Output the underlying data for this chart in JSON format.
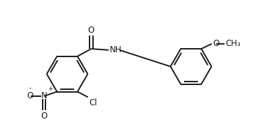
{
  "bg_color": "#ffffff",
  "line_color": "#1a1a1a",
  "line_width": 1.4,
  "figsize": [
    3.96,
    1.98
  ],
  "dpi": 100,
  "font_size": 8.5,
  "font_size_small": 6.5,
  "xlim": [
    0,
    11
  ],
  "ylim": [
    0,
    5.5
  ]
}
